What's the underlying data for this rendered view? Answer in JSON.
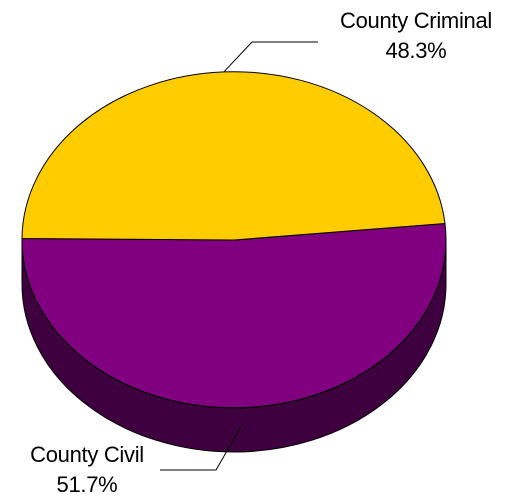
{
  "chart_data": {
    "type": "pie",
    "three_d": true,
    "slices": [
      {
        "label": "County Criminal",
        "percent_label": "48.3%",
        "value": 48.3,
        "color": "#FFCC00",
        "side_color": "#7f6600"
      },
      {
        "label": "County Civil",
        "percent_label": "51.7%",
        "value": 51.7,
        "color": "#800080",
        "side_color": "#3f003f"
      }
    ],
    "title": "",
    "legend": "none",
    "data_labels": "outside with leader lines"
  }
}
